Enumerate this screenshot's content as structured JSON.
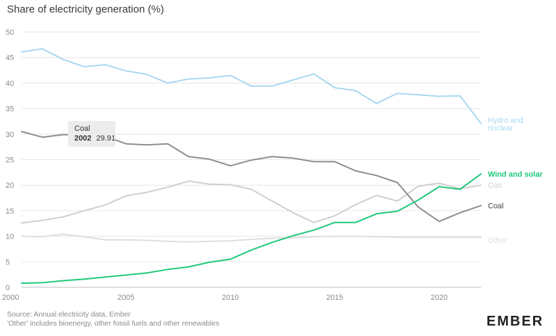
{
  "chart_data": {
    "type": "line",
    "title": "Share of electricity generation (%)",
    "x": [
      2000,
      2001,
      2002,
      2003,
      2004,
      2005,
      2006,
      2007,
      2008,
      2009,
      2010,
      2011,
      2012,
      2013,
      2014,
      2015,
      2016,
      2017,
      2018,
      2019,
      2020,
      2021,
      2022
    ],
    "xticks": [
      2000,
      2005,
      2010,
      2015,
      2020
    ],
    "ylim": [
      0,
      50
    ],
    "yticks": [
      0,
      5,
      10,
      15,
      20,
      25,
      30,
      35,
      40,
      45,
      50
    ],
    "grid": true,
    "series": [
      {
        "name": "Hydro and nuclear",
        "label_lines": [
          "Hydro and",
          "nuclear"
        ],
        "color": "#a8d8f0",
        "values": [
          46.1,
          46.7,
          44.6,
          43.2,
          43.6,
          42.4,
          41.7,
          40.0,
          40.8,
          41.0,
          41.5,
          39.4,
          39.4,
          40.6,
          41.8,
          39.1,
          38.5,
          36.0,
          38.0,
          37.7,
          37.4,
          37.5,
          32.1
        ]
      },
      {
        "name": "Wind and solar",
        "label_lines": [
          "Wind and solar"
        ],
        "color": "#1fc97a",
        "values": [
          0.8,
          0.9,
          1.3,
          1.6,
          2.0,
          2.4,
          2.8,
          3.5,
          4.0,
          4.9,
          5.5,
          7.3,
          8.8,
          10.1,
          11.2,
          12.7,
          12.7,
          14.4,
          14.9,
          17.1,
          19.7,
          19.2,
          22.2
        ]
      },
      {
        "name": "Gas",
        "label_lines": [
          "Gas"
        ],
        "color": "#cfcfcf",
        "values": [
          12.6,
          13.1,
          13.8,
          15.0,
          16.1,
          17.9,
          18.6,
          19.6,
          20.8,
          20.2,
          20.1,
          19.2,
          16.9,
          14.6,
          12.7,
          14.0,
          16.2,
          18.0,
          16.9,
          19.8,
          20.4,
          19.3,
          20.0
        ]
      },
      {
        "name": "Coal",
        "label_lines": [
          "Coal"
        ],
        "color": "#8d8d8d",
        "values": [
          30.5,
          29.4,
          29.91,
          29.8,
          29.6,
          28.1,
          27.9,
          28.1,
          25.6,
          25.1,
          23.8,
          24.9,
          25.6,
          25.3,
          24.6,
          24.6,
          22.8,
          21.9,
          20.5,
          15.7,
          12.9,
          14.6,
          16.0
        ]
      },
      {
        "name": "Other",
        "label_lines": [
          "Other"
        ],
        "color": "#dedede",
        "values": [
          10.0,
          9.9,
          10.4,
          9.9,
          9.3,
          9.3,
          9.2,
          9.0,
          8.9,
          9.0,
          9.1,
          9.4,
          9.6,
          9.7,
          9.9,
          10.0,
          10.0,
          9.9,
          9.8,
          9.8,
          9.8,
          9.8,
          9.8
        ]
      }
    ],
    "tooltip": {
      "series": "Coal",
      "year": "2002",
      "value": "29.91"
    }
  },
  "footer": {
    "source": "Source: Annual electricity data, Ember",
    "note": "'Other' includes bioenergy, other fossil fuels and other renewables",
    "logo": "EMBER"
  }
}
